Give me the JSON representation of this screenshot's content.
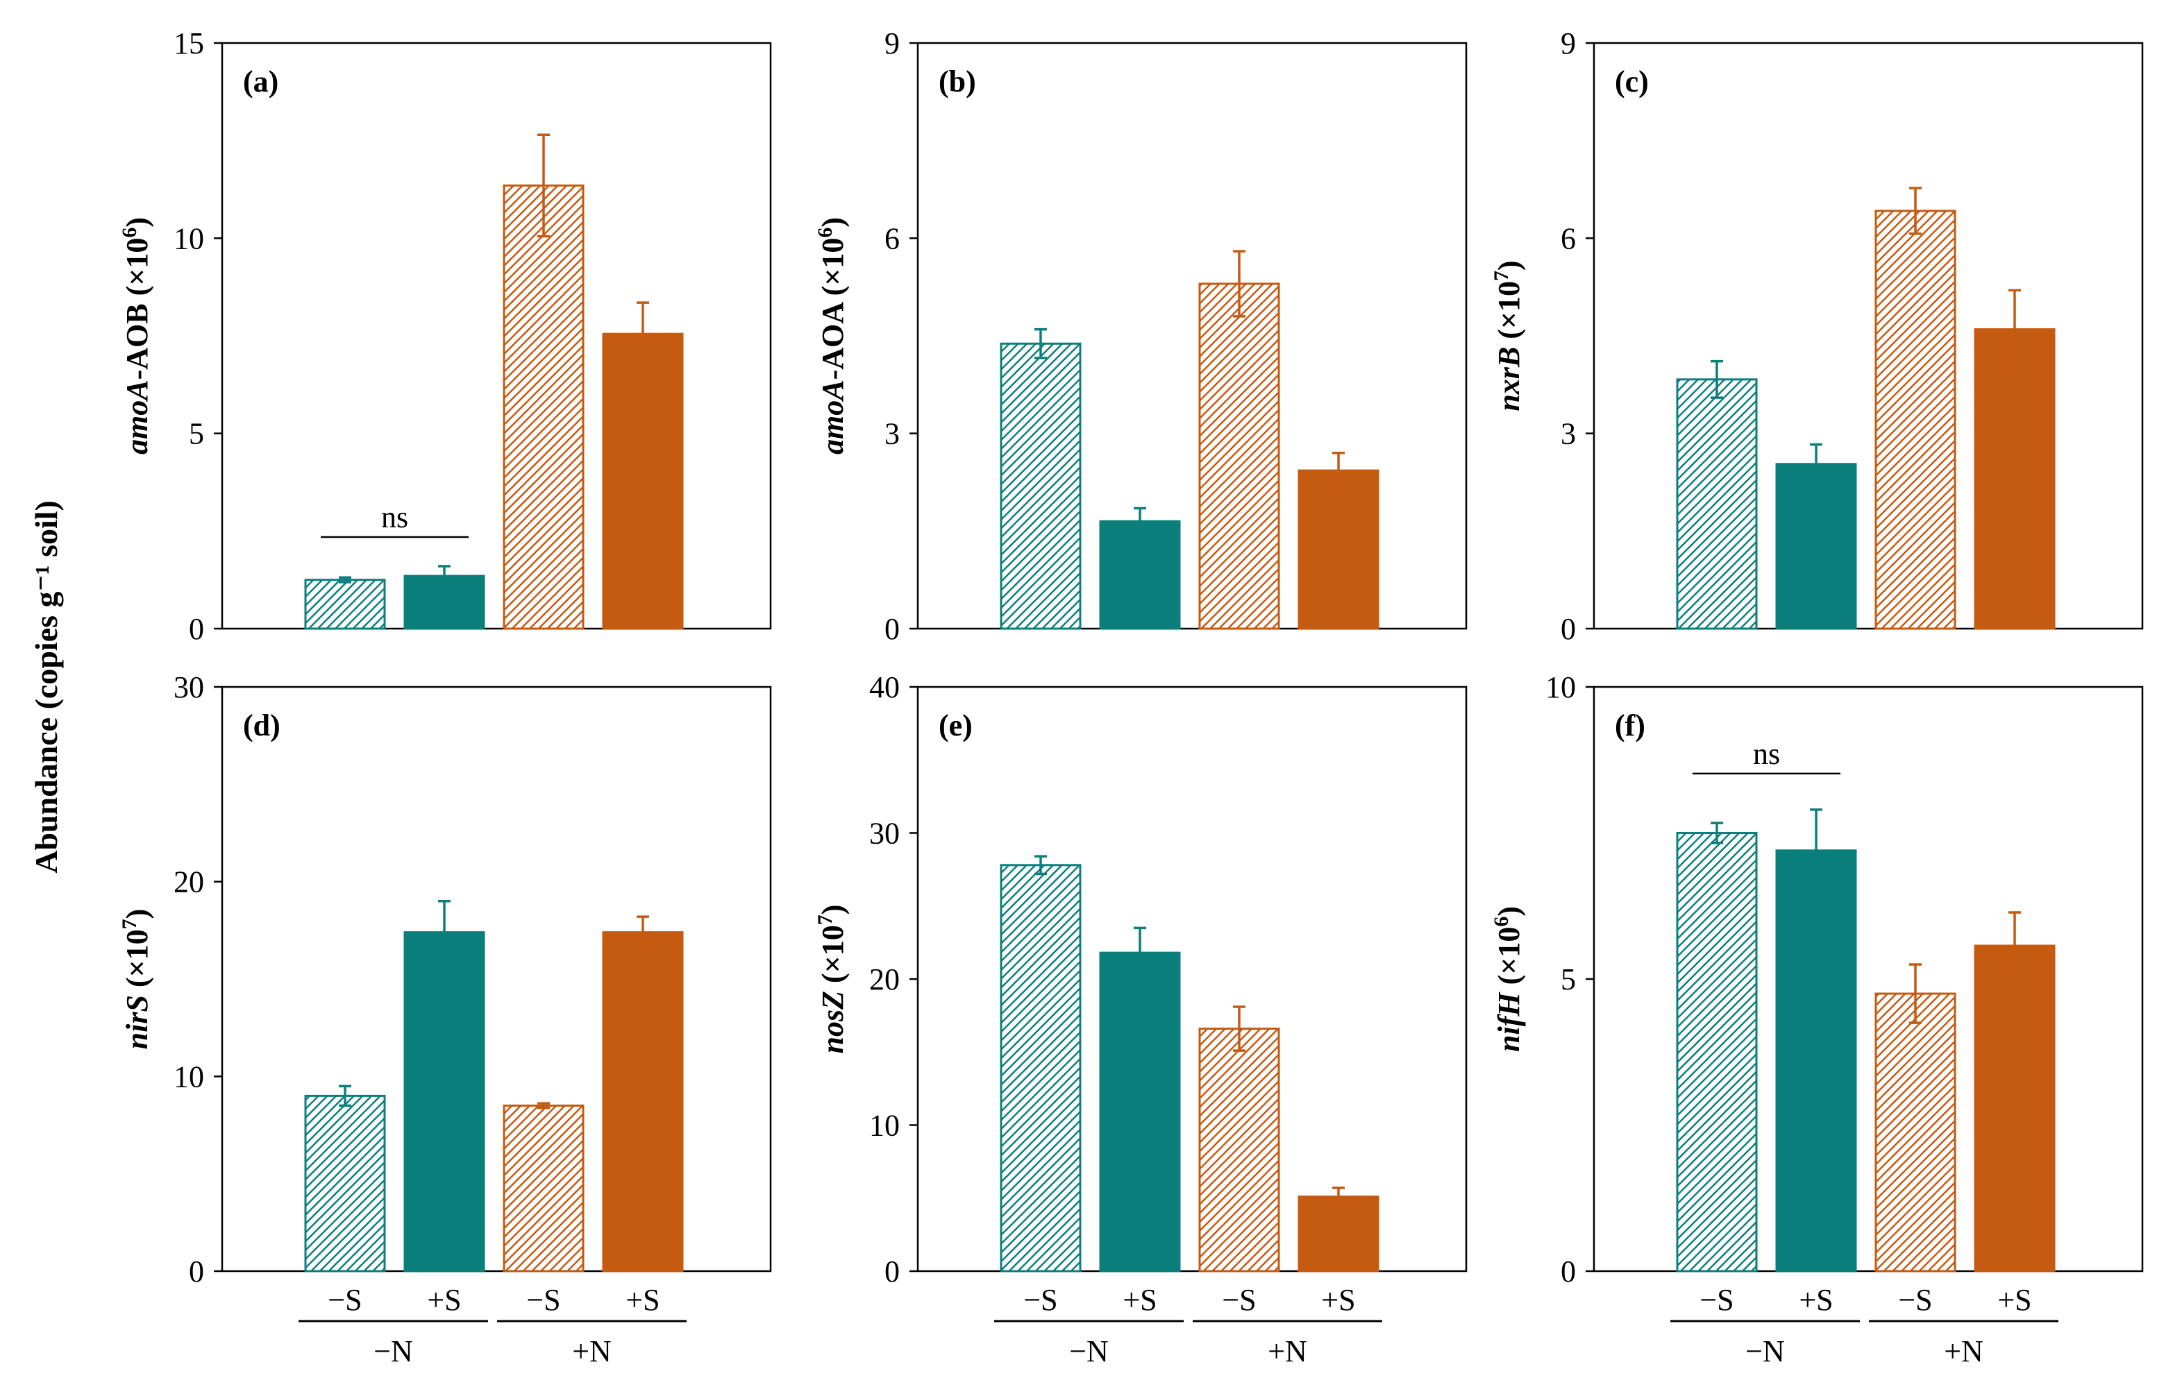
{
  "figure": {
    "shared_ylabel": "Abundance (copies g⁻¹ soil)",
    "x_groups": [
      "−N",
      "+N"
    ],
    "x_sublabels": [
      "−S",
      "+S",
      "−S",
      "+S"
    ],
    "colors": {
      "teal": "#0b7f7c",
      "orange": "#c55a11"
    }
  },
  "chart_data": [
    {
      "type": "bar",
      "panel": "(a)",
      "ylabel_italic": "amoA",
      "ylabel_rest": "-AOB (×10",
      "ylabel_exp": "6",
      "ylabel_end": ")",
      "ylim": [
        0,
        15
      ],
      "yticks": [
        "0",
        "5",
        "10",
        "15"
      ],
      "categories": [
        "−S",
        "+S",
        "−S",
        "+S"
      ],
      "groups": [
        "−N",
        "−N",
        "+N",
        "+N"
      ],
      "values": [
        1.25,
        1.35,
        11.35,
        7.55
      ],
      "errors": [
        0.06,
        0.25,
        1.3,
        0.8
      ],
      "annotation": {
        "text": "ns",
        "bars": [
          0,
          1
        ]
      }
    },
    {
      "type": "bar",
      "panel": "(b)",
      "ylabel_italic": "amoA",
      "ylabel_rest": "-AOA (×10",
      "ylabel_exp": "6",
      "ylabel_end": ")",
      "ylim": [
        0,
        9
      ],
      "yticks": [
        "0",
        "3",
        "6",
        "9"
      ],
      "categories": [
        "−S",
        "+S",
        "−S",
        "+S"
      ],
      "groups": [
        "−N",
        "−N",
        "+N",
        "+N"
      ],
      "values": [
        4.38,
        1.65,
        5.3,
        2.43
      ],
      "errors": [
        0.22,
        0.2,
        0.5,
        0.27
      ]
    },
    {
      "type": "bar",
      "panel": "(c)",
      "ylabel_italic": "nxrB",
      "ylabel_rest": " (×10",
      "ylabel_exp": "7",
      "ylabel_end": ")",
      "ylim": [
        0,
        9
      ],
      "yticks": [
        "0",
        "3",
        "6",
        "9"
      ],
      "categories": [
        "−S",
        "+S",
        "−S",
        "+S"
      ],
      "groups": [
        "−N",
        "−N",
        "+N",
        "+N"
      ],
      "values": [
        3.83,
        2.53,
        6.42,
        4.6
      ],
      "errors": [
        0.28,
        0.3,
        0.35,
        0.6
      ]
    },
    {
      "type": "bar",
      "panel": "(d)",
      "ylabel_italic": "nirS",
      "ylabel_rest": " (×10",
      "ylabel_exp": "7",
      "ylabel_end": ")",
      "ylim": [
        0,
        30
      ],
      "yticks": [
        "0",
        "10",
        "20",
        "30"
      ],
      "categories": [
        "−S",
        "+S",
        "−S",
        "+S"
      ],
      "groups": [
        "−N",
        "−N",
        "+N",
        "+N"
      ],
      "values": [
        9.0,
        17.4,
        8.5,
        17.4
      ],
      "errors": [
        0.5,
        1.6,
        0.12,
        0.8
      ]
    },
    {
      "type": "bar",
      "panel": "(e)",
      "ylabel_italic": "nosZ",
      "ylabel_rest": " (×10",
      "ylabel_exp": "7",
      "ylabel_end": ")",
      "ylim": [
        0,
        40
      ],
      "yticks": [
        "0",
        "10",
        "20",
        "30",
        "40"
      ],
      "categories": [
        "−S",
        "+S",
        "−S",
        "+S"
      ],
      "groups": [
        "−N",
        "−N",
        "+N",
        "+N"
      ],
      "values": [
        27.8,
        21.8,
        16.6,
        5.1
      ],
      "errors": [
        0.6,
        1.7,
        1.5,
        0.6
      ]
    },
    {
      "type": "bar",
      "panel": "(f)",
      "ylabel_italic": "nifH",
      "ylabel_rest": " (×10",
      "ylabel_exp": "6",
      "ylabel_end": ")",
      "ylim": [
        0,
        10
      ],
      "yticks": [
        "0",
        "5",
        "10"
      ],
      "categories": [
        "−S",
        "+S",
        "−S",
        "+S"
      ],
      "groups": [
        "−N",
        "−N",
        "+N",
        "+N"
      ],
      "values": [
        7.5,
        7.2,
        4.75,
        5.57
      ],
      "errors": [
        0.17,
        0.7,
        0.5,
        0.57
      ],
      "annotation": {
        "text": "ns",
        "bars": [
          0,
          1
        ]
      }
    }
  ]
}
